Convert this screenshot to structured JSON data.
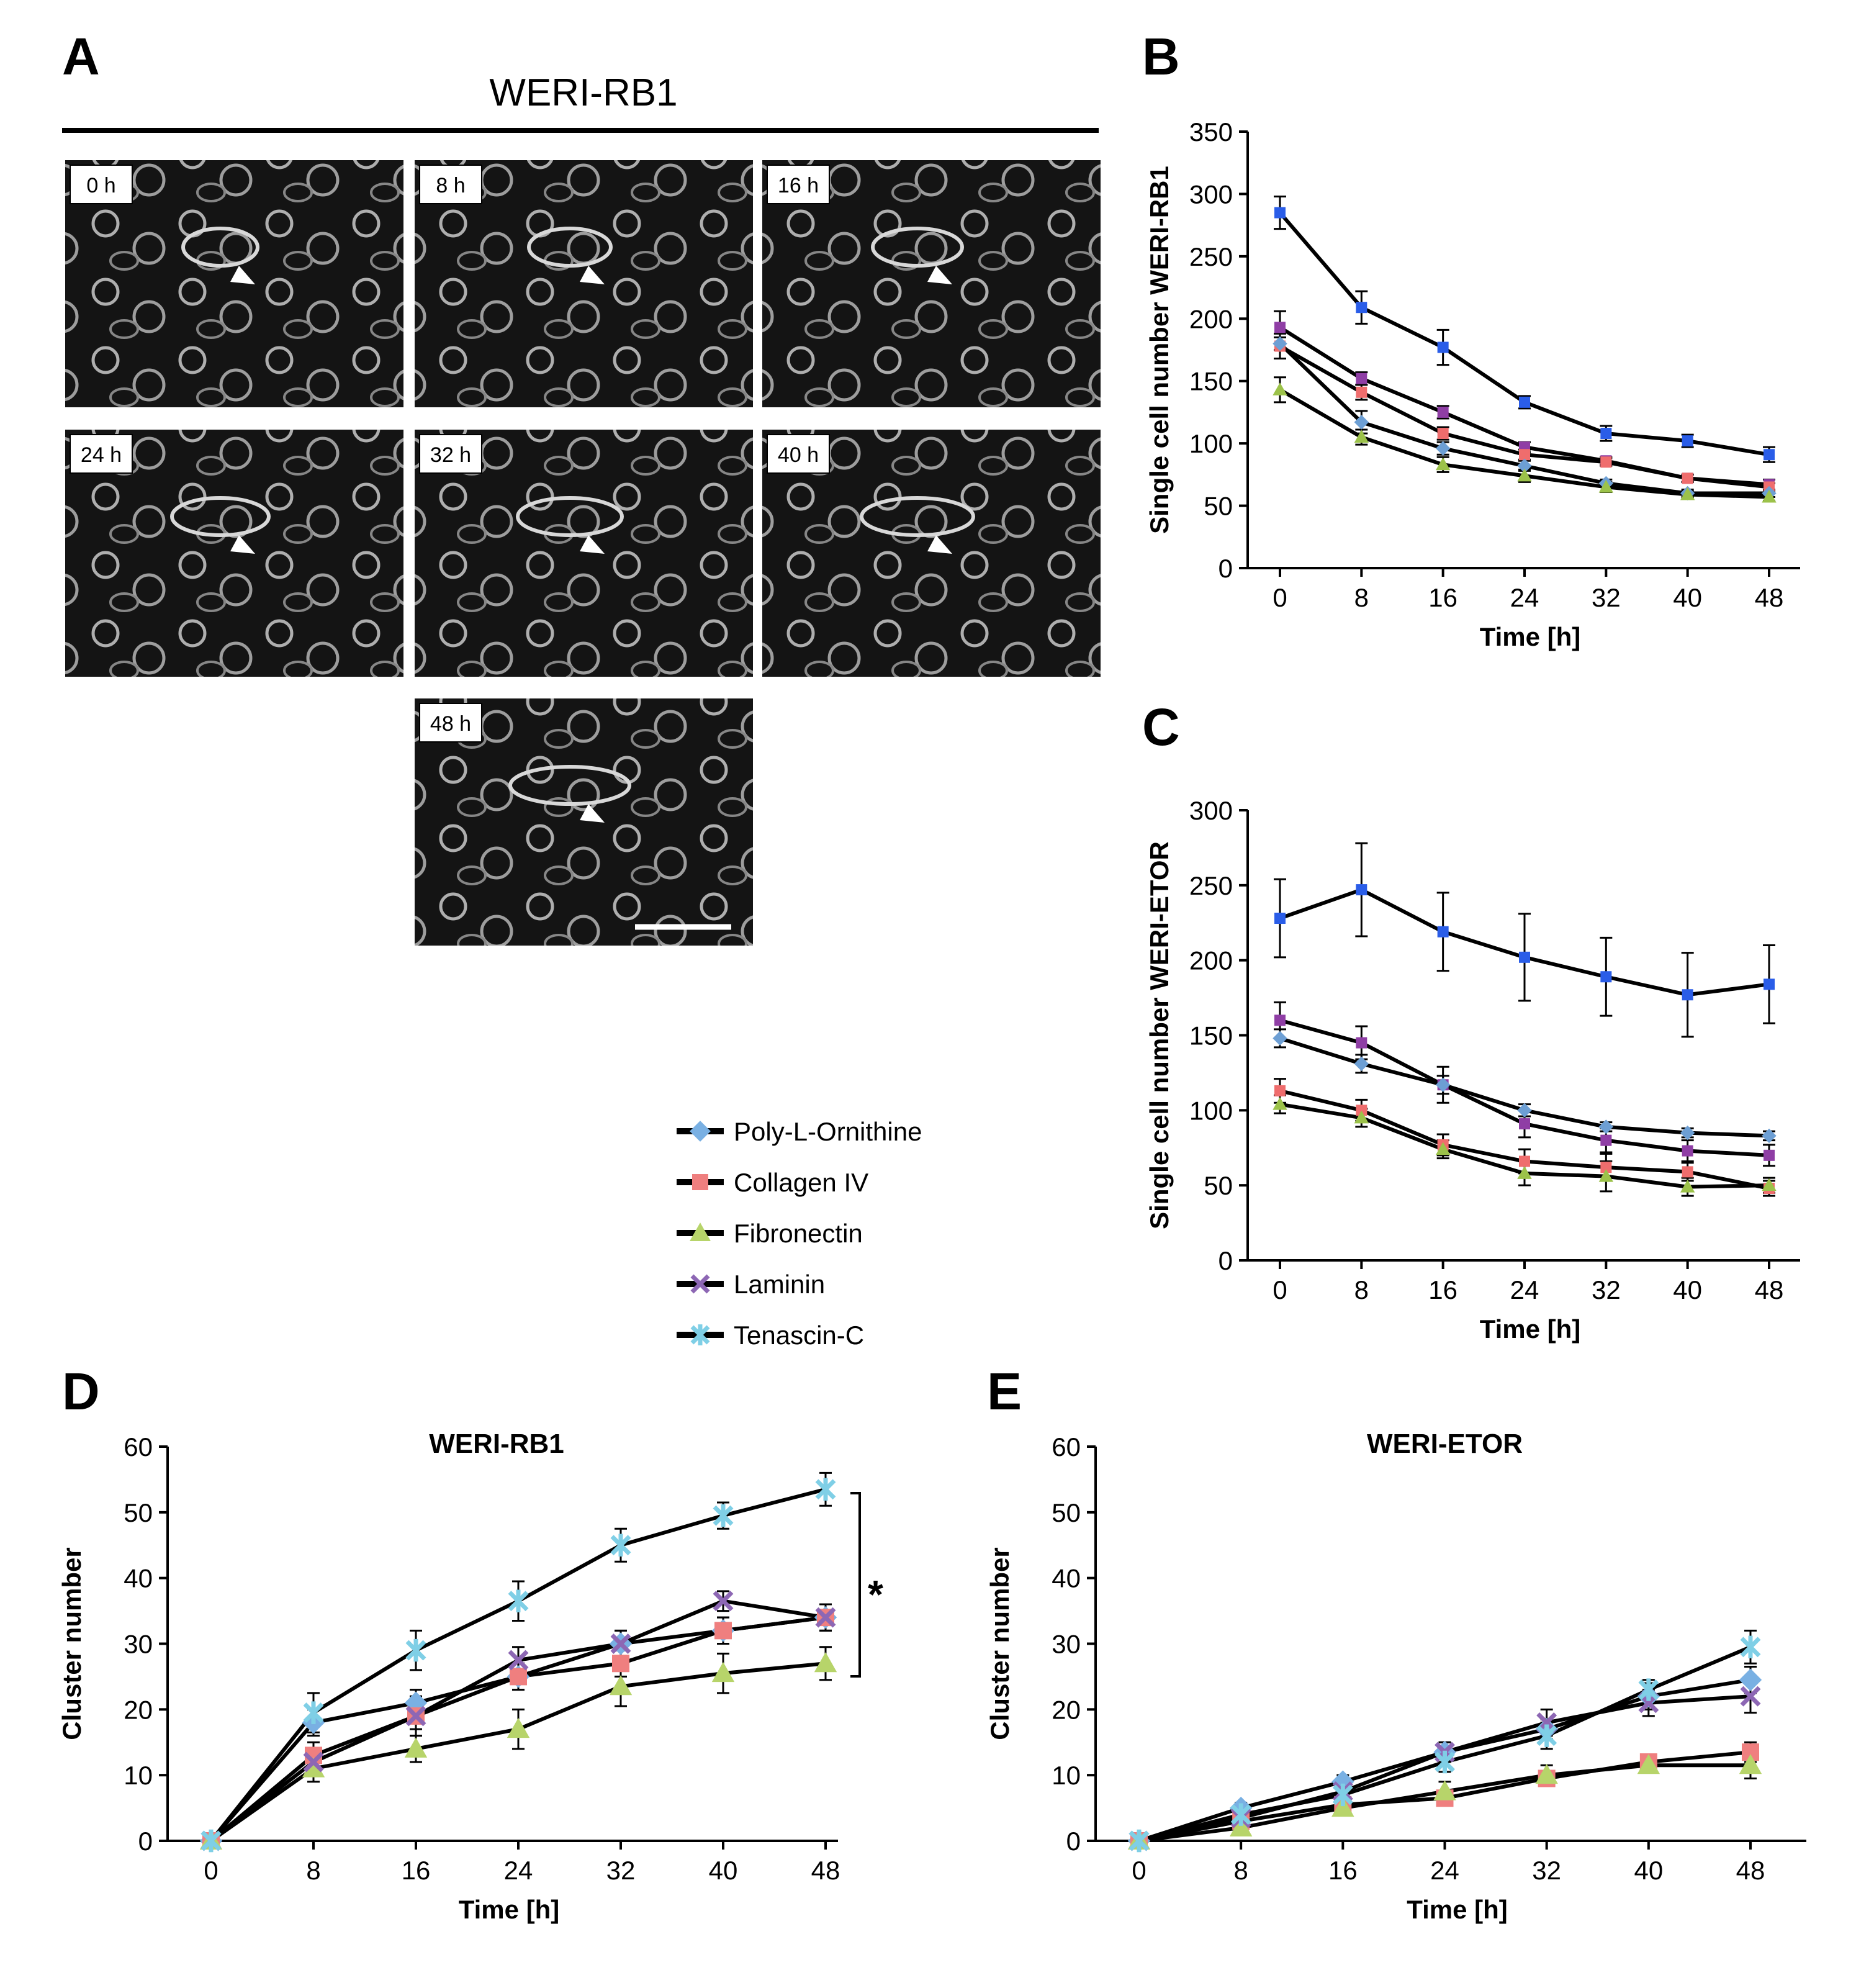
{
  "panel_labels": {
    "a": "A",
    "b": "B",
    "c": "C",
    "d": "D",
    "e": "E"
  },
  "micrographs": {
    "title": "WERI-RB1",
    "time_labels": [
      "0 h",
      "8 h",
      "16 h",
      "24 h",
      "32 h",
      "40 h",
      "48 h"
    ]
  },
  "legend": {
    "items": [
      {
        "name": "Poly-L-Ornithine",
        "color": "#79b0e3",
        "marker": "diamond"
      },
      {
        "name": "Collagen IV",
        "color": "#ef7f7f",
        "marker": "square"
      },
      {
        "name": "Fibronectin",
        "color": "#b7d46a",
        "marker": "triangle"
      },
      {
        "name": "Laminin",
        "color": "#8d67b4",
        "marker": "x"
      },
      {
        "name": "Tenascin-C",
        "color": "#7fcfe6",
        "marker": "star"
      }
    ]
  },
  "significance_mark": "*",
  "chart_data": [
    {
      "id": "b",
      "type": "line",
      "title": "",
      "xlabel": "Time [h]",
      "ylabel": "Single cell number  WERI-RB1",
      "x": [
        0,
        8,
        16,
        24,
        32,
        40,
        48
      ],
      "ylim": [
        0,
        350
      ],
      "yticks": [
        0,
        50,
        100,
        150,
        200,
        250,
        300,
        350
      ],
      "series": [
        {
          "name": "Blue (top)",
          "color": "#2a5de8",
          "marker": "square",
          "values": [
            285,
            209,
            177,
            133,
            108,
            102,
            91
          ],
          "errors": [
            13,
            13,
            14,
            5,
            6,
            5,
            6
          ]
        },
        {
          "name": "Purple",
          "color": "#8f3ea5",
          "marker": "square",
          "values": [
            193,
            152,
            125,
            97,
            86,
            72,
            67
          ],
          "errors": [
            13,
            5,
            5,
            4,
            3,
            3,
            4
          ]
        },
        {
          "name": "Pink",
          "color": "#ef6d6d",
          "marker": "square",
          "values": [
            178,
            141,
            108,
            91,
            85,
            72,
            65
          ],
          "errors": [
            10,
            6,
            5,
            4,
            3,
            3,
            3
          ]
        },
        {
          "name": "Light blue",
          "color": "#6d9fd4",
          "marker": "diamond",
          "values": [
            180,
            117,
            96,
            82,
            68,
            60,
            60
          ],
          "errors": [
            5,
            9,
            5,
            4,
            3,
            3,
            3
          ]
        },
        {
          "name": "Green",
          "color": "#9cc24a",
          "marker": "triangle",
          "values": [
            143,
            105,
            83,
            74,
            65,
            59,
            57
          ],
          "errors": [
            10,
            6,
            6,
            5,
            4,
            3,
            3
          ]
        }
      ]
    },
    {
      "id": "c",
      "type": "line",
      "title": "",
      "xlabel": "Time [h]",
      "ylabel": "Single cell number WERI-ETOR",
      "x": [
        0,
        8,
        16,
        24,
        32,
        40,
        48
      ],
      "ylim": [
        0,
        300
      ],
      "yticks": [
        0,
        50,
        100,
        150,
        200,
        250,
        300
      ],
      "series": [
        {
          "name": "Blue (top)",
          "color": "#2a5de8",
          "marker": "square",
          "values": [
            228,
            247,
            219,
            202,
            189,
            177,
            184
          ],
          "errors": [
            26,
            31,
            26,
            29,
            26,
            28,
            26
          ]
        },
        {
          "name": "Purple",
          "color": "#8f3ea5",
          "marker": "square",
          "values": [
            160,
            145,
            117,
            91,
            80,
            73,
            70
          ],
          "errors": [
            12,
            11,
            12,
            9,
            8,
            7,
            7
          ]
        },
        {
          "name": "Light blue",
          "color": "#6d9fd4",
          "marker": "diamond",
          "values": [
            148,
            131,
            117,
            100,
            89,
            85,
            83
          ],
          "errors": [
            6,
            6,
            6,
            4,
            3,
            3,
            3
          ]
        },
        {
          "name": "Pink",
          "color": "#ef6d6d",
          "marker": "square",
          "values": [
            113,
            100,
            77,
            66,
            62,
            59,
            48
          ],
          "errors": [
            8,
            7,
            7,
            8,
            9,
            6,
            5
          ]
        },
        {
          "name": "Green",
          "color": "#9cc24a",
          "marker": "triangle",
          "values": [
            104,
            95,
            74,
            58,
            56,
            49,
            50
          ],
          "errors": [
            6,
            6,
            6,
            8,
            10,
            6,
            5
          ]
        }
      ]
    },
    {
      "id": "d",
      "type": "line",
      "title": "WERI-RB1",
      "xlabel": "Time [h]",
      "ylabel": "Cluster number",
      "x": [
        0,
        8,
        16,
        24,
        32,
        40,
        48
      ],
      "ylim": [
        0,
        60
      ],
      "yticks": [
        0,
        10,
        20,
        30,
        40,
        50,
        60
      ],
      "series": [
        {
          "name": "Poly-L-Ornithine",
          "color": "#79b0e3",
          "marker": "diamond",
          "values": [
            0,
            18,
            21,
            25,
            30,
            32,
            34
          ],
          "errors": [
            0,
            2,
            2,
            2,
            2,
            2,
            2
          ]
        },
        {
          "name": "Collagen IV",
          "color": "#ef7f7f",
          "marker": "square",
          "values": [
            0,
            13,
            19,
            25,
            27,
            32,
            34
          ],
          "errors": [
            0,
            2,
            2,
            2,
            2,
            2,
            2
          ]
        },
        {
          "name": "Fibronectin",
          "color": "#b7d46a",
          "marker": "triangle",
          "values": [
            0,
            11,
            14,
            17,
            23.5,
            25.5,
            27
          ],
          "errors": [
            0,
            2,
            2,
            3,
            3,
            3,
            2.5
          ]
        },
        {
          "name": "Laminin",
          "color": "#8d67b4",
          "marker": "x",
          "values": [
            0,
            12,
            19,
            27.5,
            30,
            36.5,
            34
          ],
          "errors": [
            0,
            2,
            3,
            2,
            2,
            1.5,
            2
          ]
        },
        {
          "name": "Tenascin-C",
          "color": "#7fcfe6",
          "marker": "star",
          "values": [
            0,
            19.5,
            29,
            36.5,
            45,
            49.5,
            53.5
          ],
          "errors": [
            0,
            3,
            3,
            3,
            2.5,
            2,
            2.5
          ]
        }
      ]
    },
    {
      "id": "e",
      "type": "line",
      "title": "WERI-ETOR",
      "xlabel": "Time [h]",
      "ylabel": "Cluster number",
      "x": [
        0,
        8,
        16,
        24,
        32,
        40,
        48
      ],
      "ylim": [
        0,
        60
      ],
      "yticks": [
        0,
        10,
        20,
        30,
        40,
        50,
        60
      ],
      "series": [
        {
          "name": "Poly-L-Ornithine",
          "color": "#79b0e3",
          "marker": "diamond",
          "values": [
            0,
            5,
            9,
            13.5,
            17,
            22,
            24.5
          ],
          "errors": [
            0,
            0.8,
            1,
            1.5,
            1.5,
            2,
            2
          ]
        },
        {
          "name": "Collagen IV",
          "color": "#ef7f7f",
          "marker": "square",
          "values": [
            0,
            3,
            5.5,
            6.5,
            9.5,
            12,
            13.5
          ],
          "errors": [
            0,
            1,
            1,
            1,
            1,
            1,
            1.5
          ]
        },
        {
          "name": "Fibronectin",
          "color": "#b7d46a",
          "marker": "triangle",
          "values": [
            0,
            2,
            5,
            7.5,
            10,
            11.5,
            11.5
          ],
          "errors": [
            0,
            0.8,
            1,
            1.5,
            1.5,
            1,
            2
          ]
        },
        {
          "name": "Laminin",
          "color": "#8d67b4",
          "marker": "x",
          "values": [
            0,
            3.5,
            7.5,
            13.5,
            18,
            21,
            22
          ],
          "errors": [
            0,
            1,
            1,
            1.5,
            2,
            2,
            2.5
          ]
        },
        {
          "name": "Tenascin-C",
          "color": "#7fcfe6",
          "marker": "star",
          "values": [
            0,
            4,
            7,
            12,
            16,
            23,
            29.5
          ],
          "errors": [
            0,
            1,
            1.5,
            1.5,
            2,
            1.5,
            2.5
          ]
        }
      ]
    }
  ]
}
